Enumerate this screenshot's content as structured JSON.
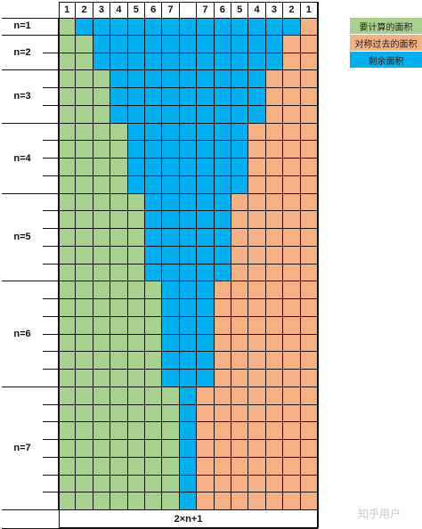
{
  "header": {
    "left_labels": [
      "1",
      "2",
      "3",
      "4",
      "5",
      "6",
      "7"
    ],
    "gap_label": "",
    "right_labels": [
      "7",
      "6",
      "5",
      "4",
      "3",
      "2",
      "1"
    ]
  },
  "row_groups": [
    {
      "label": "n=1",
      "rows": 1
    },
    {
      "label": "n=2",
      "rows": 2
    },
    {
      "label": "n=3",
      "rows": 3
    },
    {
      "label": "n=4",
      "rows": 4
    },
    {
      "label": "n=5",
      "rows": 5
    },
    {
      "label": "n=6",
      "rows": 6
    },
    {
      "label": "n=7",
      "rows": 7
    }
  ],
  "column_count": 15,
  "regions": {
    "green_columns_by_n": [
      1,
      2,
      3,
      4,
      5,
      6,
      7
    ],
    "orange_columns_by_n": [
      1,
      2,
      3,
      4,
      5,
      6,
      7
    ]
  },
  "footer": {
    "label": "2×n+1"
  },
  "legend": {
    "items": [
      {
        "label": "要计算的面积",
        "color": "#a9d18e"
      },
      {
        "label": "对称过去的面积",
        "color": "#f4b183"
      },
      {
        "label": "剩余面积",
        "color": "#00b0f0"
      }
    ]
  },
  "colors": {
    "green": "#a9d18e",
    "orange": "#f4b183",
    "blue": "#00b0f0",
    "white": "#ffffff",
    "line": "#111111"
  },
  "watermark": "知乎用户"
}
